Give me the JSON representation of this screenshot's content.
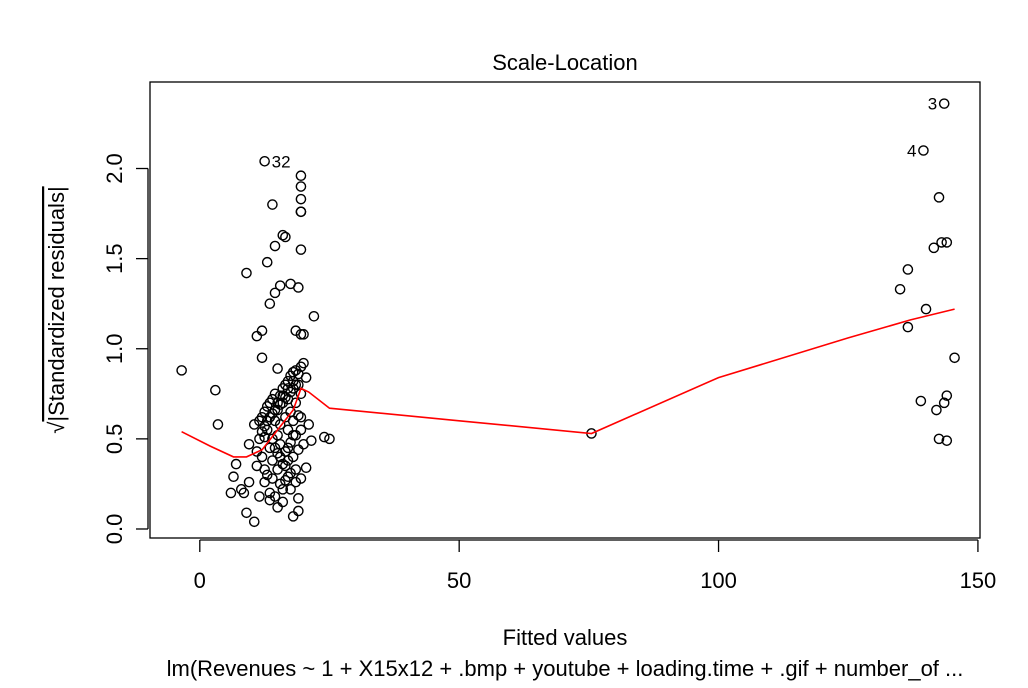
{
  "chart_data": {
    "type": "scatter",
    "title": "Scale-Location",
    "xlabel": "Fitted values",
    "ylabel": "√|Standardized residuals|",
    "ylabel_root": "√",
    "ylabel_body": "|Standardized residuals|",
    "subtitle": "lm(Revenues ~ 1 + X15x12 + .bmp + youtube + loading.time + .gif + number_of ...",
    "xlim": [
      -9.6,
      150.4
    ],
    "ylim": [
      -0.05,
      2.48
    ],
    "xticks": [
      0,
      50,
      100,
      150
    ],
    "xtick_labels": [
      "0",
      "50",
      "100",
      "150"
    ],
    "yticks": [
      0.0,
      0.5,
      1.0,
      1.5,
      2.0
    ],
    "ytick_labels": [
      "0.0",
      "0.5",
      "1.0",
      "1.5",
      "2.0"
    ],
    "grid": false,
    "point_color": "#000000",
    "smooth_color": "#ff0000",
    "points": [
      [
        -3.5,
        0.88
      ],
      [
        3.0,
        0.77
      ],
      [
        3.5,
        0.58
      ],
      [
        6.0,
        0.2
      ],
      [
        6.5,
        0.29
      ],
      [
        7.0,
        0.36
      ],
      [
        8.0,
        0.22
      ],
      [
        8.5,
        0.2
      ],
      [
        9.0,
        0.09
      ],
      [
        9.5,
        0.26
      ],
      [
        9.0,
        1.42
      ],
      [
        9.5,
        0.47
      ],
      [
        10.5,
        0.04
      ],
      [
        10.5,
        0.58
      ],
      [
        11.0,
        1.07
      ],
      [
        11.5,
        0.18
      ],
      [
        12.0,
        1.1
      ],
      [
        12.0,
        0.95
      ],
      [
        12.5,
        0.51
      ],
      [
        13.0,
        1.48
      ],
      [
        12.5,
        2.04
      ],
      [
        13.5,
        1.25
      ],
      [
        14.0,
        1.8
      ],
      [
        14.5,
        1.31
      ],
      [
        14.5,
        1.57
      ],
      [
        15.0,
        0.89
      ],
      [
        15.5,
        1.35
      ],
      [
        16.0,
        1.63
      ],
      [
        16.5,
        1.62
      ],
      [
        17.0,
        0.29
      ],
      [
        17.5,
        1.36
      ],
      [
        18.0,
        0.07
      ],
      [
        18.5,
        1.1
      ],
      [
        19.0,
        1.34
      ],
      [
        19.0,
        0.1
      ],
      [
        19.5,
        1.96
      ],
      [
        19.5,
        1.9
      ],
      [
        19.5,
        1.83
      ],
      [
        19.5,
        1.76
      ],
      [
        19.5,
        1.76
      ],
      [
        19.5,
        1.55
      ],
      [
        19.5,
        1.08
      ],
      [
        20.0,
        1.08
      ],
      [
        20.0,
        0.92
      ],
      [
        20.0,
        0.47
      ],
      [
        20.5,
        0.84
      ],
      [
        20.5,
        0.34
      ],
      [
        21.0,
        0.58
      ],
      [
        21.5,
        0.49
      ],
      [
        22.0,
        1.18
      ],
      [
        24.0,
        0.51
      ],
      [
        25.0,
        0.5
      ],
      [
        11.0,
        0.43
      ],
      [
        11.5,
        0.6
      ],
      [
        12.0,
        0.62
      ],
      [
        12.0,
        0.4
      ],
      [
        12.5,
        0.33
      ],
      [
        12.5,
        0.65
      ],
      [
        13.0,
        0.3
      ],
      [
        13.0,
        0.55
      ],
      [
        13.0,
        0.68
      ],
      [
        13.5,
        0.45
      ],
      [
        13.5,
        0.7
      ],
      [
        13.5,
        0.2
      ],
      [
        14.0,
        0.72
      ],
      [
        14.0,
        0.38
      ],
      [
        14.0,
        0.5
      ],
      [
        14.0,
        0.28
      ],
      [
        14.5,
        0.6
      ],
      [
        14.5,
        0.75
      ],
      [
        14.5,
        0.18
      ],
      [
        15.0,
        0.33
      ],
      [
        15.0,
        0.66
      ],
      [
        15.0,
        0.52
      ],
      [
        15.0,
        0.42
      ],
      [
        15.5,
        0.74
      ],
      [
        15.5,
        0.25
      ],
      [
        15.5,
        0.58
      ],
      [
        15.5,
        0.47
      ],
      [
        16.0,
        0.7
      ],
      [
        16.0,
        0.36
      ],
      [
        16.0,
        0.78
      ],
      [
        16.0,
        0.15
      ],
      [
        16.5,
        0.62
      ],
      [
        16.5,
        0.43
      ],
      [
        16.5,
        0.8
      ],
      [
        16.5,
        0.27
      ],
      [
        17.0,
        0.55
      ],
      [
        17.0,
        0.72
      ],
      [
        17.0,
        0.38
      ],
      [
        17.0,
        0.82
      ],
      [
        17.5,
        0.48
      ],
      [
        17.5,
        0.65
      ],
      [
        17.5,
        0.85
      ],
      [
        17.5,
        0.22
      ],
      [
        18.0,
        0.6
      ],
      [
        18.0,
        0.4
      ],
      [
        18.0,
        0.78
      ],
      [
        18.0,
        0.87
      ],
      [
        18.5,
        0.52
      ],
      [
        18.5,
        0.7
      ],
      [
        18.5,
        0.33
      ],
      [
        18.5,
        0.88
      ],
      [
        19.0,
        0.44
      ],
      [
        19.0,
        0.63
      ],
      [
        19.0,
        0.8
      ],
      [
        19.0,
        0.17
      ],
      [
        19.5,
        0.55
      ],
      [
        19.5,
        0.75
      ],
      [
        19.5,
        0.9
      ],
      [
        19.5,
        0.28
      ],
      [
        12.5,
        0.57
      ],
      [
        13.5,
        0.62
      ],
      [
        14.5,
        0.66
      ],
      [
        15.5,
        0.69
      ],
      [
        16.5,
        0.73
      ],
      [
        17.5,
        0.76
      ],
      [
        18.5,
        0.8
      ],
      [
        19.0,
        0.86
      ],
      [
        14.0,
        0.64
      ],
      [
        15.0,
        0.7
      ],
      [
        16.0,
        0.74
      ],
      [
        17.0,
        0.78
      ],
      [
        18.0,
        0.82
      ],
      [
        13.0,
        0.6
      ],
      [
        12.0,
        0.54
      ],
      [
        11.5,
        0.5
      ],
      [
        14.5,
        0.45
      ],
      [
        15.5,
        0.4
      ],
      [
        16.5,
        0.35
      ],
      [
        17.5,
        0.31
      ],
      [
        18.5,
        0.26
      ],
      [
        16.0,
        0.22
      ],
      [
        15.0,
        0.12
      ],
      [
        13.5,
        0.16
      ],
      [
        17.0,
        0.45
      ],
      [
        18.0,
        0.52
      ],
      [
        19.5,
        0.62
      ],
      [
        12.5,
        0.26
      ],
      [
        11.0,
        0.35
      ],
      [
        75.5,
        0.53
      ],
      [
        135.0,
        1.33
      ],
      [
        136.5,
        1.44
      ],
      [
        136.5,
        1.12
      ],
      [
        139.0,
        0.71
      ],
      [
        139.5,
        2.1
      ],
      [
        140.0,
        1.22
      ],
      [
        141.5,
        1.56
      ],
      [
        142.0,
        0.66
      ],
      [
        142.5,
        0.5
      ],
      [
        142.5,
        1.84
      ],
      [
        143.0,
        1.59
      ],
      [
        143.5,
        0.7
      ],
      [
        143.5,
        2.36
      ],
      [
        144.0,
        1.59
      ],
      [
        144.0,
        0.74
      ],
      [
        144.0,
        0.49
      ],
      [
        145.5,
        0.95
      ]
    ],
    "smooth": [
      [
        -3.5,
        0.54
      ],
      [
        2.0,
        0.46
      ],
      [
        6.5,
        0.4
      ],
      [
        9.0,
        0.4
      ],
      [
        12.0,
        0.44
      ],
      [
        15.0,
        0.55
      ],
      [
        18.0,
        0.66
      ],
      [
        19.5,
        0.78
      ],
      [
        21.0,
        0.76
      ],
      [
        25.0,
        0.67
      ],
      [
        50.0,
        0.6
      ],
      [
        75.5,
        0.53
      ],
      [
        100.0,
        0.84
      ],
      [
        125.0,
        1.06
      ],
      [
        137.0,
        1.16
      ],
      [
        145.5,
        1.22
      ]
    ],
    "labeled_points": [
      {
        "x": 143.5,
        "y": 2.36,
        "label": "3"
      },
      {
        "x": 139.5,
        "y": 2.1,
        "label": "4"
      },
      {
        "x": 12.5,
        "y": 2.04,
        "label": "32"
      }
    ]
  }
}
